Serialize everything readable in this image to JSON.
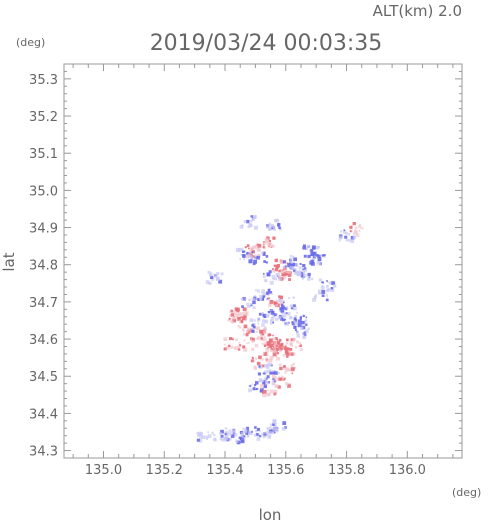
{
  "header": {
    "altitude_label": "ALT(km) 2.0",
    "timestamp": "2019/03/24 00:03:35"
  },
  "chart_data": {
    "type": "heatmap",
    "title": "2019/03/24 00:03:35",
    "xlabel": "lon",
    "ylabel": "lat",
    "x_unit": "(deg)",
    "y_unit": "(deg)",
    "xlim": [
      134.87,
      136.18
    ],
    "ylim": [
      34.28,
      35.34
    ],
    "x_ticks": [
      "135.0",
      "135.2",
      "135.4",
      "135.6",
      "135.8",
      "136.0"
    ],
    "y_ticks": [
      "34.3",
      "34.4",
      "34.5",
      "34.6",
      "34.7",
      "34.8",
      "34.9",
      "35.0",
      "35.1",
      "35.2",
      "35.3"
    ],
    "grid": false,
    "colors": {
      "positive": "#e8707a",
      "negative": "#6a6ae8",
      "light_positive": "#f4c4cc",
      "light_negative": "#c8c8f4",
      "axis": "#999999",
      "text": "#666666"
    },
    "cells": [
      {
        "lon": 135.52,
        "lat": 34.62,
        "v": 0.3
      },
      {
        "lon": 135.54,
        "lat": 34.6,
        "v": 0.8
      },
      {
        "lon": 135.56,
        "lat": 34.59,
        "v": 0.9
      },
      {
        "lon": 135.58,
        "lat": 34.58,
        "v": 0.7
      },
      {
        "lon": 135.55,
        "lat": 34.56,
        "v": 0.5
      },
      {
        "lon": 135.6,
        "lat": 34.57,
        "v": 0.4
      },
      {
        "lon": 135.5,
        "lat": 34.64,
        "v": -0.4
      },
      {
        "lon": 135.53,
        "lat": 34.66,
        "v": -0.6
      },
      {
        "lon": 135.57,
        "lat": 34.67,
        "v": -0.7
      },
      {
        "lon": 135.61,
        "lat": 34.66,
        "v": -0.5
      },
      {
        "lon": 135.64,
        "lat": 34.65,
        "v": -0.6
      },
      {
        "lon": 135.46,
        "lat": 34.63,
        "v": 0.2
      },
      {
        "lon": 135.44,
        "lat": 34.67,
        "v": 0.8
      },
      {
        "lon": 135.43,
        "lat": 34.66,
        "v": 0.6
      },
      {
        "lon": 135.51,
        "lat": 34.54,
        "v": 0.6
      },
      {
        "lon": 135.53,
        "lat": 34.52,
        "v": -0.5
      },
      {
        "lon": 135.55,
        "lat": 34.5,
        "v": -0.4
      },
      {
        "lon": 135.58,
        "lat": 34.49,
        "v": 0.5
      },
      {
        "lon": 135.6,
        "lat": 34.52,
        "v": 0.3
      },
      {
        "lon": 135.62,
        "lat": 34.59,
        "v": 0.6
      },
      {
        "lon": 135.48,
        "lat": 34.59,
        "v": 0.2
      },
      {
        "lon": 135.47,
        "lat": 34.7,
        "v": -0.5
      },
      {
        "lon": 135.52,
        "lat": 34.72,
        "v": -0.7
      },
      {
        "lon": 135.56,
        "lat": 34.71,
        "v": 0.5
      },
      {
        "lon": 135.6,
        "lat": 34.7,
        "v": -0.4
      },
      {
        "lon": 135.49,
        "lat": 34.84,
        "v": 0.7
      },
      {
        "lon": 135.51,
        "lat": 34.82,
        "v": -0.6
      },
      {
        "lon": 135.53,
        "lat": 34.86,
        "v": 0.8
      },
      {
        "lon": 135.46,
        "lat": 34.83,
        "v": -0.5
      },
      {
        "lon": 135.58,
        "lat": 34.8,
        "v": 0.9
      },
      {
        "lon": 135.6,
        "lat": 34.78,
        "v": 0.7
      },
      {
        "lon": 135.61,
        "lat": 34.81,
        "v": -0.6
      },
      {
        "lon": 135.63,
        "lat": 34.79,
        "v": -0.5
      },
      {
        "lon": 135.68,
        "lat": 34.84,
        "v": -0.7
      },
      {
        "lon": 135.7,
        "lat": 34.82,
        "v": -0.6
      },
      {
        "lon": 135.66,
        "lat": 34.78,
        "v": -0.5
      },
      {
        "lon": 135.8,
        "lat": 34.88,
        "v": -0.4
      },
      {
        "lon": 135.83,
        "lat": 34.9,
        "v": 0.3
      },
      {
        "lon": 135.56,
        "lat": 34.91,
        "v": -0.5
      },
      {
        "lon": 135.47,
        "lat": 34.92,
        "v": -0.3
      },
      {
        "lon": 135.41,
        "lat": 34.35,
        "v": -0.4
      },
      {
        "lon": 135.45,
        "lat": 34.34,
        "v": -0.5
      },
      {
        "lon": 135.48,
        "lat": 34.35,
        "v": -0.6
      },
      {
        "lon": 135.52,
        "lat": 34.35,
        "v": -0.4
      },
      {
        "lon": 135.55,
        "lat": 34.36,
        "v": -0.3
      },
      {
        "lon": 135.38,
        "lat": 34.34,
        "v": -0.3
      },
      {
        "lon": 135.33,
        "lat": 34.34,
        "v": -0.2
      },
      {
        "lon": 135.58,
        "lat": 34.37,
        "v": -0.3
      },
      {
        "lon": 135.5,
        "lat": 34.48,
        "v": -0.6
      },
      {
        "lon": 135.54,
        "lat": 34.47,
        "v": 0.4
      },
      {
        "lon": 135.65,
        "lat": 34.62,
        "v": -0.3
      },
      {
        "lon": 135.42,
        "lat": 34.59,
        "v": 0.5
      },
      {
        "lon": 135.73,
        "lat": 34.75,
        "v": -0.4
      },
      {
        "lon": 135.71,
        "lat": 34.72,
        "v": -0.3
      },
      {
        "lon": 135.36,
        "lat": 34.77,
        "v": -0.3
      },
      {
        "lon": 135.55,
        "lat": 34.77,
        "v": -0.4
      }
    ]
  }
}
